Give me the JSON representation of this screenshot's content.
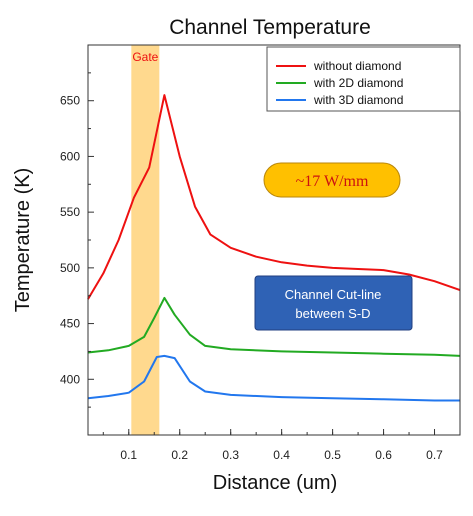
{
  "chart_data": {
    "type": "line",
    "title": "Channel Temperature",
    "xlabel": "Distance (um)",
    "ylabel": "Temperature (K)",
    "xlim": [
      0.02,
      0.75
    ],
    "ylim": [
      350,
      700
    ],
    "xticks": [
      0.1,
      0.2,
      0.3,
      0.4,
      0.5,
      0.6,
      0.7
    ],
    "yticks": [
      400,
      450,
      500,
      550,
      600,
      650
    ],
    "grid": false,
    "legend_position": "top-right",
    "series": [
      {
        "name": "without diamond",
        "color": "#ee1111",
        "points": [
          [
            0.02,
            472
          ],
          [
            0.05,
            495
          ],
          [
            0.08,
            525
          ],
          [
            0.11,
            563
          ],
          [
            0.14,
            590
          ],
          [
            0.17,
            655
          ],
          [
            0.2,
            600
          ],
          [
            0.23,
            555
          ],
          [
            0.26,
            530
          ],
          [
            0.3,
            518
          ],
          [
            0.35,
            510
          ],
          [
            0.4,
            505
          ],
          [
            0.45,
            502
          ],
          [
            0.5,
            500
          ],
          [
            0.55,
            499
          ],
          [
            0.6,
            498
          ],
          [
            0.65,
            494
          ],
          [
            0.7,
            488
          ],
          [
            0.75,
            480
          ]
        ]
      },
      {
        "name": "with 2D diamond",
        "color": "#22aa22",
        "points": [
          [
            0.02,
            424
          ],
          [
            0.06,
            426
          ],
          [
            0.1,
            430
          ],
          [
            0.13,
            438
          ],
          [
            0.15,
            455
          ],
          [
            0.17,
            473
          ],
          [
            0.19,
            458
          ],
          [
            0.22,
            440
          ],
          [
            0.25,
            430
          ],
          [
            0.3,
            427
          ],
          [
            0.4,
            425
          ],
          [
            0.5,
            424
          ],
          [
            0.6,
            423
          ],
          [
            0.7,
            422
          ],
          [
            0.75,
            421
          ]
        ]
      },
      {
        "name": "with 3D diamond",
        "color": "#2277ee",
        "points": [
          [
            0.02,
            383
          ],
          [
            0.06,
            385
          ],
          [
            0.1,
            388
          ],
          [
            0.13,
            398
          ],
          [
            0.155,
            420
          ],
          [
            0.17,
            421
          ],
          [
            0.19,
            419
          ],
          [
            0.22,
            398
          ],
          [
            0.25,
            389
          ],
          [
            0.3,
            386
          ],
          [
            0.4,
            384
          ],
          [
            0.5,
            383
          ],
          [
            0.6,
            382
          ],
          [
            0.7,
            381
          ],
          [
            0.75,
            381
          ]
        ]
      }
    ],
    "annotations": {
      "gate_label": "Gate",
      "gate_range": [
        0.105,
        0.16
      ],
      "gate_color": "#ffd27a",
      "gate_text_color": "#ee1111",
      "power_label": "~17 W/mm",
      "power_fill": "#ffc000",
      "power_text_color": "#cc1111",
      "box_line1": "Channel Cut-line",
      "box_line2": "between S-D",
      "box_fill": "#2f62b5"
    }
  }
}
